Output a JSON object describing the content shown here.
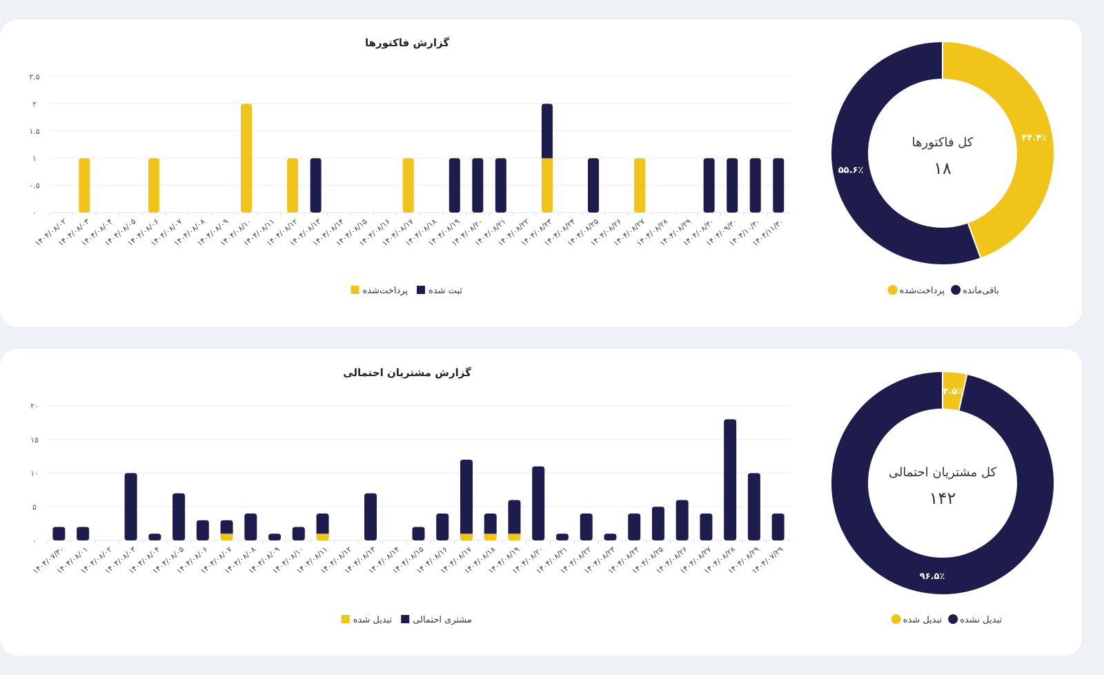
{
  "colors": {
    "navy": "#1d1c4d",
    "yellow": "#f0c419",
    "grid": "#e8ebf0"
  },
  "chart_data": [
    {
      "type": "bar",
      "stacked": true,
      "title": "گزارش فاکتورها",
      "ylim": [
        0,
        2.5
      ],
      "yticks": [
        0,
        0.5,
        1,
        1.5,
        2,
        2.5
      ],
      "ytick_labels": [
        "۰",
        "۰.۵",
        "۱",
        "۱.۵",
        "۲",
        "۲.۵"
      ],
      "grid": true,
      "legend_position": "bottom",
      "categories": [
        "۱۴۰۴/۰۸/۰۲",
        "۱۴۰۴/۰۸/۰۳",
        "۱۴۰۴/۰۸/۰۴",
        "۱۴۰۴/۰۸/۰۵",
        "۱۴۰۴/۰۸/۰۶",
        "۱۴۰۴/۰۸/۰۷",
        "۱۴۰۴/۰۸/۰۸",
        "۱۴۰۴/۰۸/۰۹",
        "۱۴۰۴/۰۸/۱۰",
        "۱۴۰۴/۰۸/۱۱",
        "۱۴۰۴/۰۸/۱۲",
        "۱۴۰۴/۰۸/۱۳",
        "۱۴۰۴/۰۸/۱۴",
        "۱۴۰۴/۰۸/۱۵",
        "۱۴۰۴/۰۸/۱۶",
        "۱۴۰۴/۰۸/۱۷",
        "۱۴۰۴/۰۸/۱۸",
        "۱۴۰۴/۰۸/۱۹",
        "۱۴۰۴/۰۸/۲۰",
        "۱۴۰۴/۰۸/۲۱",
        "۱۴۰۴/۰۸/۲۲",
        "۱۴۰۴/۰۸/۲۳",
        "۱۴۰۴/۰۸/۲۴",
        "۱۴۰۴/۰۸/۲۵",
        "۱۴۰۴/۰۸/۲۶",
        "۱۴۰۴/۰۸/۲۷",
        "۱۴۰۴/۰۸/۲۸",
        "۱۴۰۴/۰۸/۲۹",
        "۱۴۰۴/۰۸/۳۰",
        "۱۴۰۴/۰۹/۳۰",
        "۱۴۰۴/۱۰/۳۰",
        "۱۴۰۴/۱۱/۳۰"
      ],
      "series": [
        {
          "name": "پرداخت‌شده",
          "color": "#f0c419",
          "values": [
            0,
            1,
            0,
            0,
            1,
            0,
            0,
            0,
            2,
            0,
            1,
            0,
            0,
            0,
            0,
            1,
            0,
            0,
            0,
            0,
            0,
            1,
            0,
            0,
            0,
            1,
            0,
            0,
            0,
            0,
            0,
            0
          ]
        },
        {
          "name": "ثبت شده",
          "color": "#1d1c4d",
          "values": [
            0,
            0,
            0,
            0,
            0,
            0,
            0,
            0,
            0,
            0,
            0,
            1,
            0,
            0,
            0,
            0,
            0,
            1,
            1,
            1,
            0,
            1,
            0,
            1,
            0,
            0,
            0,
            0,
            1,
            1,
            1,
            1
          ]
        }
      ]
    },
    {
      "type": "pie",
      "donut": true,
      "center_title": "کل فاکتورها",
      "center_value": "۱۸",
      "legend_position": "bottom",
      "slices": [
        {
          "name": "پرداخت‌شده",
          "value": 8,
          "label": "۴۴.۴٪",
          "color": "#f0c419"
        },
        {
          "name": "باقی‌مانده",
          "value": 10,
          "label": "۵۵.۶٪",
          "color": "#1d1c4d"
        }
      ]
    },
    {
      "type": "bar",
      "stacked": true,
      "title": "گزارش مشتریان احتمالی",
      "ylim": [
        0,
        20
      ],
      "yticks": [
        0,
        5,
        10,
        15,
        20
      ],
      "ytick_labels": [
        "۰",
        "۵",
        "۱۰",
        "۱۵",
        "۲۰"
      ],
      "grid": true,
      "legend_position": "bottom",
      "categories": [
        "۱۴۰۴/۰۷/۳۰",
        "۱۴۰۴/۰۸/۰۱",
        "۱۴۰۴/۰۸/۰۲",
        "۱۴۰۴/۰۸/۰۳",
        "۱۴۰۴/۰۸/۰۴",
        "۱۴۰۴/۰۸/۰۵",
        "۱۴۰۴/۰۸/۰۶",
        "۱۴۰۴/۰۸/۰۷",
        "۱۴۰۴/۰۸/۰۸",
        "۱۴۰۴/۰۸/۰۹",
        "۱۴۰۴/۰۸/۱۰",
        "۱۴۰۴/۰۸/۱۱",
        "۱۴۰۴/۰۸/۱۲",
        "۱۴۰۴/۰۸/۱۳",
        "۱۴۰۴/۰۸/۱۴",
        "۱۴۰۴/۰۸/۱۵",
        "۱۴۰۴/۰۸/۱۶",
        "۱۴۰۴/۰۸/۱۷",
        "۱۴۰۴/۰۸/۱۸",
        "۱۴۰۴/۰۸/۱۹",
        "۱۴۰۴/۰۸/۲۰",
        "۱۴۰۴/۰۸/۲۱",
        "۱۴۰۴/۰۸/۲۲",
        "۱۴۰۴/۰۸/۲۳",
        "۱۴۰۴/۰۸/۲۴",
        "۱۴۰۴/۰۸/۲۵",
        "۱۴۰۴/۰۸/۲۶",
        "۱۴۰۴/۰۸/۲۷",
        "۱۴۰۴/۰۸/۲۸",
        "۱۴۰۴/۰۸/۲۹",
        "۱۴۰۴/۰۷/۲۹"
      ],
      "series": [
        {
          "name": "تبدیل شده",
          "color": "#f0c419",
          "values": [
            0,
            0,
            0,
            0,
            0,
            0,
            0,
            1,
            0,
            0,
            0,
            1,
            0,
            0,
            0,
            0,
            0,
            1,
            1,
            1,
            0,
            0,
            0,
            0,
            0,
            0,
            0,
            0,
            0,
            0,
            0
          ]
        },
        {
          "name": "مشتری احتمالی",
          "color": "#1d1c4d",
          "values": [
            2,
            2,
            0,
            10,
            1,
            7,
            3,
            2,
            4,
            1,
            2,
            3,
            0,
            7,
            0,
            2,
            4,
            11,
            3,
            5,
            11,
            1,
            4,
            1,
            4,
            5,
            6,
            4,
            18,
            10,
            4
          ]
        }
      ]
    },
    {
      "type": "pie",
      "donut": true,
      "center_title": "کل مشتریان احتمالی",
      "center_value": "۱۴۲",
      "legend_position": "bottom",
      "slices": [
        {
          "name": "تبدیل شده",
          "value": 5,
          "label": "۳.۵٪",
          "color": "#f0c419"
        },
        {
          "name": "تبدیل نشده",
          "value": 137,
          "label": "۹۶.۵٪",
          "color": "#1d1c4d"
        }
      ]
    }
  ]
}
